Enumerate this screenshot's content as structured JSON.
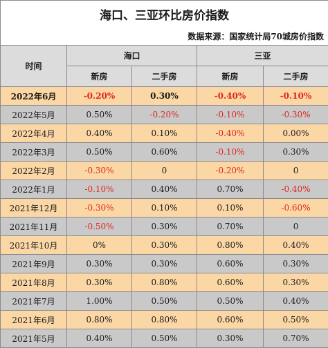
{
  "title": "海口、三亚环比房价指数",
  "source": "数据来源：国家统计局70城房价指数",
  "header": {
    "time": "时间",
    "haikou": "海口",
    "sanya": "三亚",
    "new_house": "新房",
    "second_hand": "二手房"
  },
  "rows": [
    {
      "date": "2022年6月",
      "hk_new": "-0.20%",
      "hk_sec": "0.30%",
      "sy_new": "-0.40%",
      "sy_sec": "-0.10%"
    },
    {
      "date": "2022年5月",
      "hk_new": "0.50%",
      "hk_sec": "-0.20%",
      "sy_new": "-0.10%",
      "sy_sec": "-0.30%"
    },
    {
      "date": "2022年4月",
      "hk_new": "0.40%",
      "hk_sec": "0.10%",
      "sy_new": "-0.40%",
      "sy_sec": "0.00%"
    },
    {
      "date": "2022年3月",
      "hk_new": "0.50%",
      "hk_sec": "0.60%",
      "sy_new": "-0.10%",
      "sy_sec": "0.30%"
    },
    {
      "date": "2022年2月",
      "hk_new": "-0.30%",
      "hk_sec": "0",
      "sy_new": "-0.20%",
      "sy_sec": "0"
    },
    {
      "date": "2022年1月",
      "hk_new": "-0.10%",
      "hk_sec": "0.40%",
      "sy_new": "0.70%",
      "sy_sec": "-0.40%"
    },
    {
      "date": "2021年12月",
      "hk_new": "-0.30%",
      "hk_sec": "0.10%",
      "sy_new": "0.10%",
      "sy_sec": "-0.60%"
    },
    {
      "date": "2021年11月",
      "hk_new": "-0.50%",
      "hk_sec": "0.30%",
      "sy_new": "0.70%",
      "sy_sec": "0"
    },
    {
      "date": "2021年10月",
      "hk_new": "0%",
      "hk_sec": "0.30%",
      "sy_new": "0.80%",
      "sy_sec": "0.40%"
    },
    {
      "date": "2021年9月",
      "hk_new": "0.30%",
      "hk_sec": "0.30%",
      "sy_new": "0.60%",
      "sy_sec": "0.30%"
    },
    {
      "date": "2021年8月",
      "hk_new": "0.30%",
      "hk_sec": "0.80%",
      "sy_new": "0.60%",
      "sy_sec": "0.30%"
    },
    {
      "date": "2021年7月",
      "hk_new": "1.00%",
      "hk_sec": "0.50%",
      "sy_new": "0.50%",
      "sy_sec": "0.40%"
    },
    {
      "date": "2021年6月",
      "hk_new": "0.80%",
      "hk_sec": "0.80%",
      "sy_new": "0.60%",
      "sy_sec": "0.50%"
    },
    {
      "date": "2021年5月",
      "hk_new": "0.40%",
      "hk_sec": "0.50%",
      "sy_new": "0.30%",
      "sy_sec": "0.70%"
    }
  ]
}
